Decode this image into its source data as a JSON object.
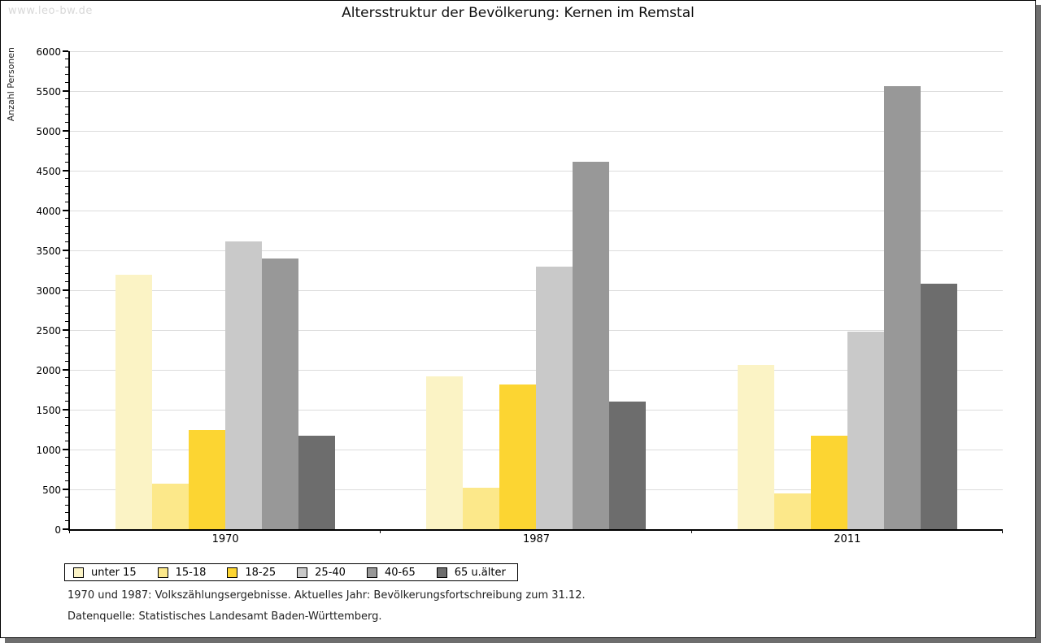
{
  "watermark": "www.leo-bw.de",
  "footnotes": [
    "1970 und 1987: Volkszählungsergebnisse. Aktuelles Jahr: Bevölkerungsfortschreibung zum 31.12.",
    "Datenquelle: Statistisches Landesamt Baden-Württemberg."
  ],
  "colors": {
    "frame_border": "#000000",
    "frame_shadow": "#6e6e6e",
    "gridline": "#dcdcdc",
    "axis": "#000000",
    "watermark_text": "#d8d8d8"
  },
  "chart_data": {
    "type": "bar",
    "title": "Altersstruktur der Bevölkerung: Kernen im Remstal",
    "categories": [
      "1970",
      "1987",
      "2011"
    ],
    "series": [
      {
        "name": "unter 15",
        "color": "#fbf3c5",
        "values": [
          3190,
          1920,
          2060
        ]
      },
      {
        "name": "15-18",
        "color": "#fce88a",
        "values": [
          570,
          520,
          450
        ]
      },
      {
        "name": "18-25",
        "color": "#fcd532",
        "values": [
          1240,
          1820,
          1170
        ]
      },
      {
        "name": "25-40",
        "color": "#c9c9c9",
        "values": [
          3610,
          3300,
          2480
        ]
      },
      {
        "name": "40-65",
        "color": "#989898",
        "values": [
          3400,
          4610,
          5560
        ]
      },
      {
        "name": "65 u.älter",
        "color": "#6d6d6d",
        "values": [
          1170,
          1600,
          3080
        ]
      }
    ],
    "xlabel": "",
    "ylabel": "Anzahl Personen",
    "ylim": [
      0,
      6000
    ],
    "y_tick_step": 500,
    "y_minor_tick_step": 100,
    "grid": true,
    "legend_position": "bottom-left"
  }
}
